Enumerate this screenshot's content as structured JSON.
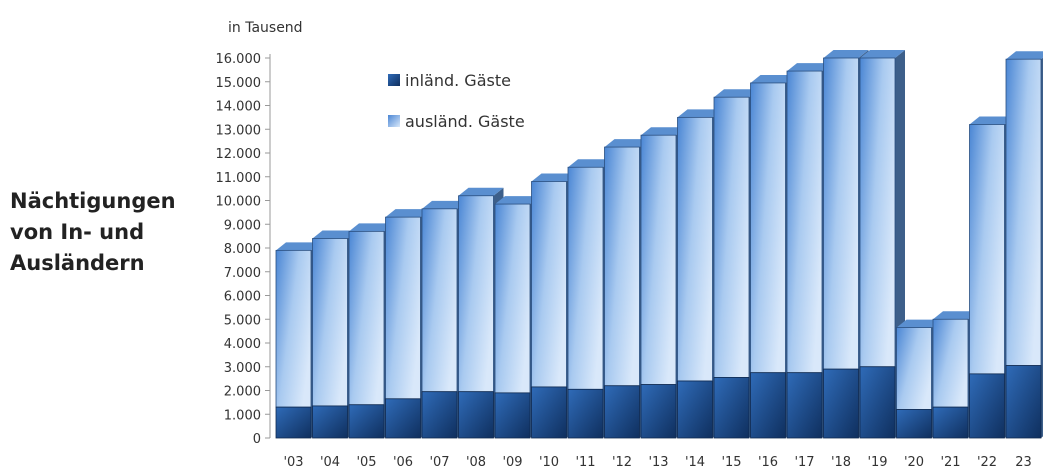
{
  "side_title": [
    "Nächtigungen",
    "von In- und",
    "Ausländern"
  ],
  "chart_data": {
    "type": "bar",
    "stacked": true,
    "unit_label": "in Tausend",
    "categories": [
      "'03",
      "'04",
      "'05",
      "'06",
      "'07",
      "'08",
      "'09",
      "'10",
      "'11",
      "'12",
      "'13",
      "'14",
      "'15",
      "'16",
      "'17",
      "'18",
      "'19",
      "'20",
      "'21",
      "'22",
      "23"
    ],
    "y_ticks": [
      "0",
      "1.000",
      "2.000",
      "3.000",
      "4.000",
      "5.000",
      "6.000",
      "7.000",
      "8.000",
      "9.000",
      "10.000",
      "11.000",
      "12.000",
      "13.000",
      "14.000",
      "15.000",
      "16.000"
    ],
    "ylim": [
      0,
      16000
    ],
    "series": [
      {
        "name": "inländ. Gäste",
        "color": "#1f4f8f",
        "values": [
          1300,
          1350,
          1400,
          1650,
          1950,
          1950,
          1900,
          2150,
          2050,
          2200,
          2250,
          2400,
          2550,
          2750,
          2750,
          2900,
          3000,
          1200,
          1300,
          2700,
          3050
        ]
      },
      {
        "name": "ausländ. Gäste",
        "color": "#9cc0ea",
        "values": [
          6600,
          7050,
          7300,
          7650,
          7700,
          8250,
          7950,
          8650,
          9350,
          10050,
          10500,
          11100,
          11800,
          12200,
          12700,
          13100,
          13000,
          3450,
          3700,
          10500,
          12900
        ]
      }
    ],
    "legend_position": "top-left",
    "grid": false
  }
}
